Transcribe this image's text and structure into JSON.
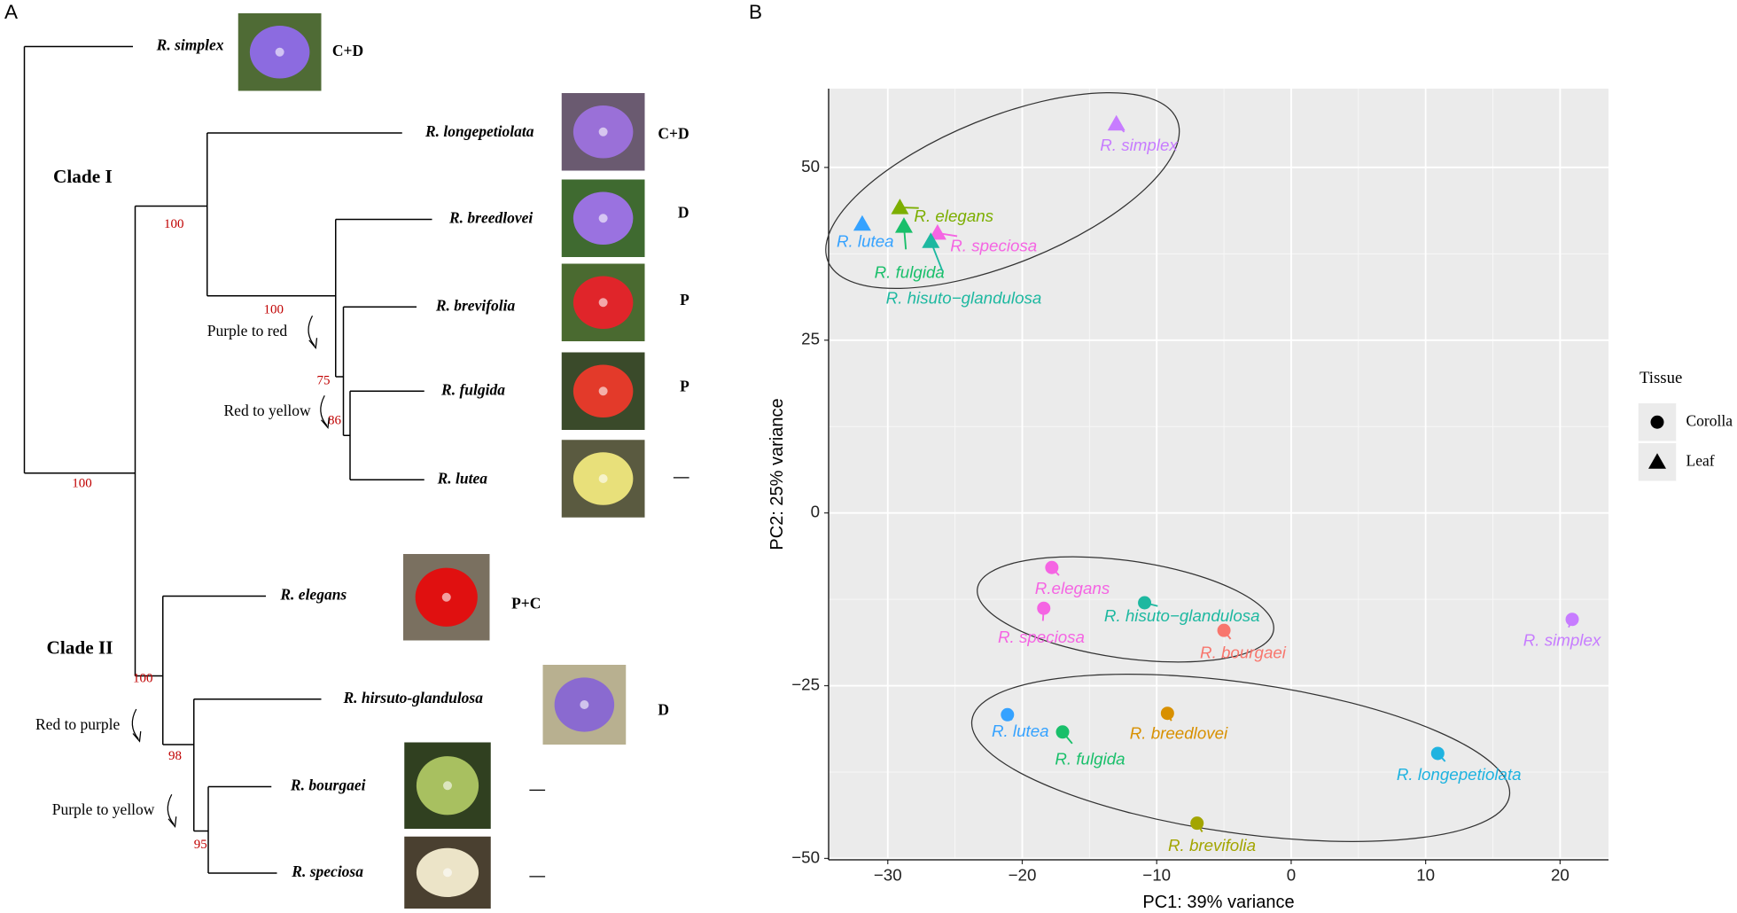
{
  "panel_a": {
    "label": "A",
    "taxa": [
      {
        "name": "R. simplex",
        "trait": "C+D"
      },
      {
        "name": "R. longepetiolata",
        "trait": "C+D"
      },
      {
        "name": "R. breedlovei",
        "trait": "D"
      },
      {
        "name": "R. brevifolia",
        "trait": "P"
      },
      {
        "name": "R. fulgida",
        "trait": "P"
      },
      {
        "name": "R. lutea",
        "trait": "—"
      },
      {
        "name": "R. elegans",
        "trait": "P+C"
      },
      {
        "name": "R. hirsuto-glandulosa",
        "trait": "D"
      },
      {
        "name": "R. bourgaei",
        "trait": "—"
      },
      {
        "name": "R. speciosa",
        "trait": "—"
      }
    ],
    "clades": [
      "Clade I",
      "Clade II"
    ],
    "bootstrap": [
      "100",
      "100",
      "100",
      "75",
      "86",
      "100",
      "98",
      "95"
    ],
    "transitions": [
      "Purple to red",
      "Red to yellow",
      "Red to purple",
      "Purple to yellow"
    ]
  },
  "chart_data": {
    "type": "scatter",
    "panel_label": "B",
    "xlabel": "PC1: 39% variance",
    "ylabel": "PC2: 25% variance",
    "xlim": [
      -34.4,
      23.6
    ],
    "ylim": [
      -50.2,
      61.4
    ],
    "xticks": [
      {
        "value": -30,
        "label": "−30"
      },
      {
        "value": -20,
        "label": "−20"
      },
      {
        "value": -10,
        "label": "−10"
      },
      0,
      10,
      20
    ],
    "yticks": [
      {
        "value": -50,
        "label": "−50"
      },
      {
        "value": -25,
        "label": "−25"
      },
      0,
      25,
      50
    ],
    "grid": true,
    "legend": {
      "title": "Tissue",
      "position": "right"
    },
    "series": [
      {
        "name": "Corolla",
        "marker": "circle",
        "labels": [
          "R.elegans",
          "R. hisuto−glandulosa",
          "R. speciosa",
          "R. bourgaei",
          "R. simplex",
          "R. lutea",
          "R. fulgida",
          "R. breedlovei",
          "R. longepetiolata",
          "R. brevifolia"
        ],
        "x": [
          -17.8,
          -10.9,
          -18.4,
          -5.0,
          20.9,
          -21.1,
          -17.0,
          -9.2,
          10.9,
          -7.0
        ],
        "values": [
          -7.9,
          -13.0,
          -13.8,
          -17.0,
          -15.4,
          -29.2,
          -31.7,
          -29.0,
          -34.8,
          -44.9
        ],
        "colors": [
          "#F564E3",
          "#1DB8A0",
          "#F564E3",
          "#F8766D",
          "#C77CFF",
          "#35A2FF",
          "#19BF6A",
          "#D89000",
          "#1FB3E0",
          "#A3A500"
        ]
      },
      {
        "name": "Leaf",
        "marker": "triangle",
        "labels": [
          "R. simplex",
          "R. elegans",
          "R. lutea",
          "R. fulgida",
          "R. speciosa",
          "R. hisuto−glandulosa"
        ],
        "x": [
          -13.0,
          -29.1,
          -31.9,
          -28.8,
          -26.3,
          -26.8
        ],
        "values": [
          56.3,
          44.2,
          41.8,
          41.5,
          40.5,
          39.3
        ],
        "colors": [
          "#C77CFF",
          "#7CAE00",
          "#35A2FF",
          "#19BF6A",
          "#F564E3",
          "#1DB8A0"
        ]
      }
    ]
  }
}
